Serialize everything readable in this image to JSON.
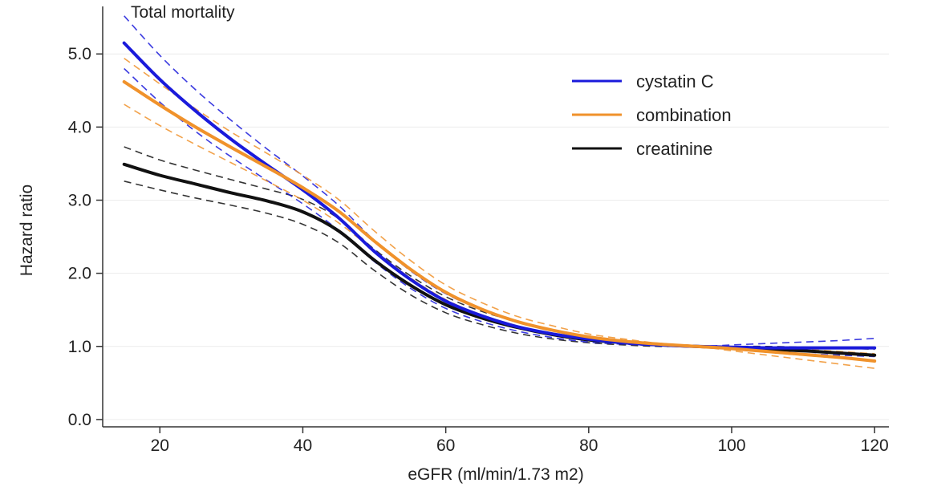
{
  "chart_data": {
    "type": "line",
    "title": "Total mortality",
    "xlabel": "eGFR (ml/min/1.73 m2)",
    "ylabel": "Hazard ratio",
    "xlim": [
      12,
      122
    ],
    "ylim": [
      -0.1,
      5.65
    ],
    "x_ticks": [
      20,
      40,
      60,
      80,
      100,
      120
    ],
    "y_ticks": [
      0,
      1,
      2,
      3,
      4,
      5
    ],
    "x_tick_labels": [
      "20",
      "40",
      "60",
      "80",
      "100",
      "120"
    ],
    "y_tick_labels": [
      "0.0",
      "1.0",
      "2.0",
      "3.0",
      "4.0",
      "5.0"
    ],
    "grid": "horizontal",
    "legend_position": "top-right",
    "x": [
      15,
      20,
      25,
      30,
      35,
      40,
      45,
      50,
      55,
      60,
      65,
      70,
      75,
      80,
      85,
      90,
      95,
      100,
      105,
      110,
      115,
      120
    ],
    "series": [
      {
        "name": "creatinine",
        "color": "#111111",
        "values": [
          3.49,
          3.34,
          3.22,
          3.1,
          2.99,
          2.84,
          2.58,
          2.18,
          1.84,
          1.57,
          1.39,
          1.26,
          1.16,
          1.09,
          1.05,
          1.02,
          1.0,
          0.98,
          0.96,
          0.94,
          0.91,
          0.88
        ],
        "ci_lower": [
          3.26,
          3.14,
          3.03,
          2.93,
          2.82,
          2.67,
          2.42,
          2.04,
          1.71,
          1.46,
          1.3,
          1.18,
          1.1,
          1.05,
          1.02,
          1.0,
          1.0,
          0.96,
          0.92,
          0.88,
          0.84,
          0.8
        ],
        "ci_upper": [
          3.73,
          3.55,
          3.41,
          3.28,
          3.15,
          3.01,
          2.75,
          2.33,
          1.97,
          1.68,
          1.48,
          1.34,
          1.22,
          1.13,
          1.08,
          1.04,
          1.0,
          1.0,
          1.0,
          0.99,
          0.98,
          0.96
        ]
      },
      {
        "name": "cystatin C",
        "color": "#1a1adb",
        "values": [
          5.15,
          4.65,
          4.22,
          3.83,
          3.48,
          3.14,
          2.76,
          2.3,
          1.92,
          1.62,
          1.42,
          1.27,
          1.17,
          1.1,
          1.05,
          1.02,
          1.0,
          0.99,
          0.98,
          0.98,
          0.98,
          0.98
        ],
        "ci_lower": [
          4.8,
          4.34,
          3.94,
          3.59,
          3.27,
          2.95,
          2.59,
          2.16,
          1.8,
          1.52,
          1.34,
          1.21,
          1.12,
          1.06,
          1.03,
          1.01,
          1.0,
          0.96,
          0.92,
          0.9,
          0.88,
          0.86
        ],
        "ci_upper": [
          5.52,
          4.98,
          4.51,
          4.09,
          3.7,
          3.33,
          2.93,
          2.45,
          2.04,
          1.72,
          1.51,
          1.34,
          1.23,
          1.14,
          1.08,
          1.03,
          1.0,
          1.02,
          1.04,
          1.06,
          1.08,
          1.11
        ]
      },
      {
        "name": "combination",
        "color": "#f0922b",
        "values": [
          4.62,
          4.3,
          4.0,
          3.72,
          3.45,
          3.17,
          2.85,
          2.44,
          2.06,
          1.74,
          1.51,
          1.34,
          1.22,
          1.13,
          1.07,
          1.03,
          1.0,
          0.97,
          0.93,
          0.89,
          0.85,
          0.8
        ],
        "ci_lower": [
          4.31,
          4.02,
          3.76,
          3.51,
          3.26,
          3.0,
          2.69,
          2.31,
          1.94,
          1.64,
          1.43,
          1.28,
          1.17,
          1.09,
          1.04,
          1.01,
          1.0,
          0.94,
          0.88,
          0.82,
          0.76,
          0.7
        ],
        "ci_upper": [
          4.94,
          4.59,
          4.25,
          3.93,
          3.64,
          3.34,
          3.01,
          2.58,
          2.18,
          1.84,
          1.6,
          1.41,
          1.28,
          1.17,
          1.1,
          1.04,
          1.0,
          1.0,
          0.98,
          0.96,
          0.93,
          0.9
        ]
      }
    ],
    "legend_order": [
      "cystatin C",
      "combination",
      "creatinine"
    ]
  }
}
